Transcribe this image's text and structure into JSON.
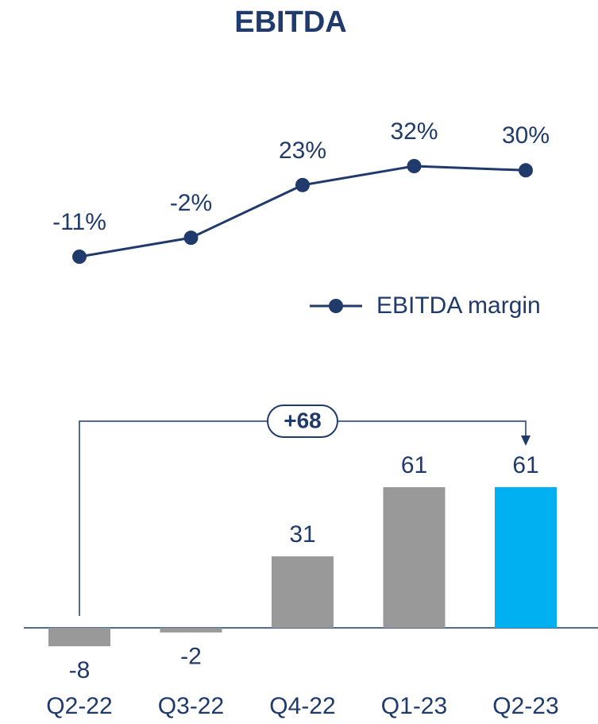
{
  "chart_data": [
    {
      "type": "line",
      "title": "EBITDA",
      "categories": [
        "Q2-22",
        "Q3-22",
        "Q4-22",
        "Q1-23",
        "Q2-23"
      ],
      "series": [
        {
          "name": "EBITDA margin",
          "color": "#1f3a6b",
          "values": [
            -11,
            -2,
            23,
            32,
            30
          ],
          "value_labels": [
            "-11%",
            "-2%",
            "23%",
            "32%",
            "30%"
          ]
        }
      ]
    },
    {
      "type": "bar",
      "categories": [
        "Q2-22",
        "Q3-22",
        "Q4-22",
        "Q1-23",
        "Q2-23"
      ],
      "values": [
        -8,
        -2,
        31,
        61,
        61
      ],
      "colors": [
        "#999999",
        "#999999",
        "#999999",
        "#999999",
        "#00b0f0"
      ],
      "annotation": "+68"
    }
  ]
}
